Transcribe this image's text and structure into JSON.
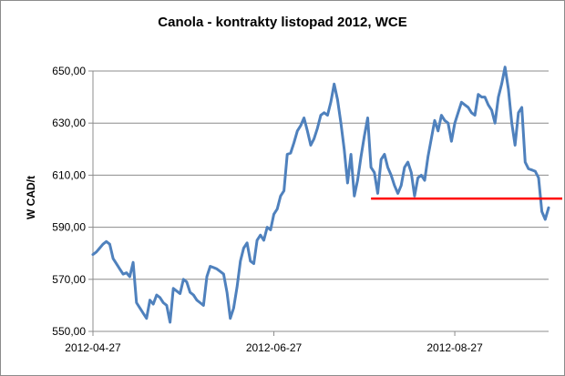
{
  "chart_data": {
    "type": "line",
    "title": "Canola - kontrakty listopad 2012, WCE",
    "xlabel": "",
    "ylabel": "W CAD/t",
    "ylim": [
      550,
      650
    ],
    "yticks": [
      "650,00",
      "630,00",
      "610,00",
      "590,00",
      "570,00",
      "550,00"
    ],
    "ytick_values": [
      650,
      630,
      610,
      590,
      570,
      550
    ],
    "xtick_labels": [
      "2012-04-27",
      "2012-06-27",
      "2012-08-27"
    ],
    "grid": "horizontal",
    "legend": "none",
    "series": [
      {
        "color": "#4f81bd",
        "values": [
          579.5,
          580.5,
          582,
          583.5,
          584.5,
          583.5,
          578,
          576,
          574,
          572,
          572.5,
          571,
          576.5,
          561,
          559,
          557,
          555,
          562,
          560.5,
          564,
          563,
          561,
          560,
          553.5,
          566.5,
          565.5,
          564.5,
          570,
          569,
          565,
          564,
          562,
          561,
          560,
          571,
          575,
          574.5,
          574,
          573,
          572,
          565,
          555,
          559,
          567,
          577,
          582,
          584,
          577,
          576,
          585,
          587,
          585,
          590,
          589,
          595,
          597,
          602,
          604,
          618,
          618.5,
          622.5,
          627,
          629,
          632,
          627,
          621.5,
          624,
          628,
          633,
          634,
          633,
          638,
          645,
          639,
          630,
          620,
          607,
          618,
          602,
          608,
          617,
          625,
          632,
          613,
          611,
          603,
          616,
          618,
          613,
          610,
          606,
          603,
          606,
          613,
          615,
          611,
          602,
          609,
          610,
          608,
          617,
          624,
          631,
          627,
          633,
          631,
          630,
          623,
          630,
          634,
          638,
          637,
          636,
          634,
          633,
          641,
          640,
          640,
          637,
          635,
          630,
          640,
          645,
          651.5,
          643,
          630,
          621.5,
          634,
          636,
          615,
          612.5,
          612,
          611.5,
          609,
          596,
          593,
          597.5
        ]
      }
    ],
    "reference_line": {
      "value": 601,
      "color": "#ff0000",
      "from_index": 83,
      "to_index": 150
    }
  }
}
